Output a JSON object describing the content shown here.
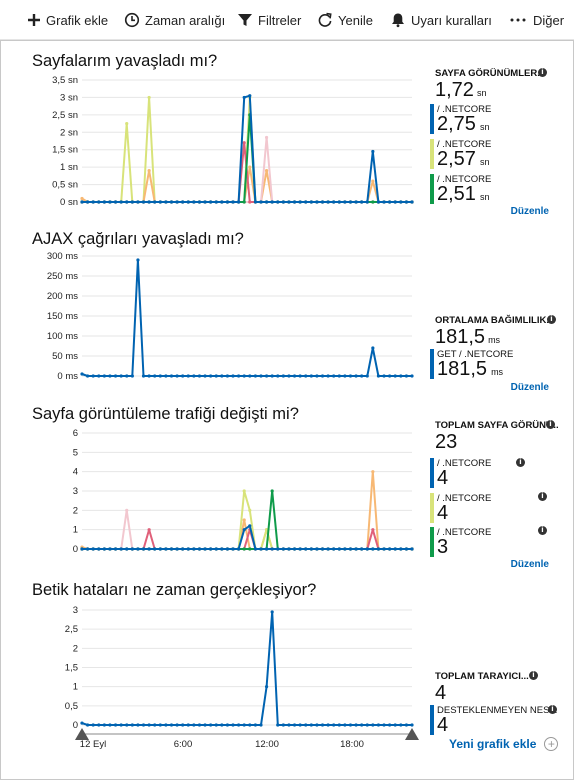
{
  "toolbar": {
    "add_chart": "Grafik ekle",
    "time_range": "Zaman aralığı",
    "filters": "Filtreler",
    "refresh": "Yenile",
    "alert_rules": "Uyarı kuralları",
    "more": "Diğer"
  },
  "colors": {
    "blue": "#0063b1",
    "lime": "#d8e37a",
    "green": "#0f9b4a",
    "pink": "#f2c7cf",
    "orange": "#f7b874",
    "red": "#e0607a",
    "purple": "#9b8fd0",
    "link": "#0063b1"
  },
  "x_axis": {
    "labels": [
      "12 Eyl",
      "6:00",
      "12:00",
      "18:00"
    ]
  },
  "sections": [
    {
      "title": "Sayfalarım yavaşladı mı?",
      "edit_label": "Düzenle",
      "summary": {
        "label": "SAYFA GÖRÜNÜMLER...",
        "value": "1,72",
        "unit": "sn"
      },
      "breakdown": [
        {
          "label": "/ .NETCORE",
          "value": "2,75",
          "unit": "sn",
          "color": "#0063b1"
        },
        {
          "label": "/ .NETCORE",
          "value": "2,57",
          "unit": "sn",
          "color": "#d8e37a"
        },
        {
          "label": "/ .NETCORE",
          "value": "2,51",
          "unit": "sn",
          "color": "#0f9b4a"
        }
      ]
    },
    {
      "title": "AJAX çağrıları yavaşladı mı?",
      "edit_label": "Düzenle",
      "summary": {
        "label": "ORTALAMA BAĞIMLILIK...",
        "value": "181,5",
        "unit": "ms"
      },
      "breakdown": [
        {
          "label": "GET / .NETCORE",
          "value": "181,5",
          "unit": "ms",
          "color": "#0063b1"
        }
      ]
    },
    {
      "title": "Sayfa görüntüleme trafiği değişti mi?",
      "edit_label": "Düzenle",
      "summary": {
        "label": "TOPLAM SAYFA GÖRÜNT...",
        "value": "23",
        "unit": ""
      },
      "breakdown": [
        {
          "label": "/ .NETCORE",
          "value": "4",
          "unit": "",
          "color": "#0063b1"
        },
        {
          "label": "/ .NETCORE",
          "value": "4",
          "unit": "",
          "color": "#d8e37a"
        },
        {
          "label": "/ .NETCORE",
          "value": "3",
          "unit": "",
          "color": "#0f9b4a"
        }
      ]
    },
    {
      "title": "Betik hataları ne zaman gerçekleşiyor?",
      "summary": {
        "label": "TOPLAM TARAYICI...",
        "value": "4",
        "unit": ""
      },
      "breakdown": [
        {
          "label": "DESTEKLENMEYEN NES...",
          "value": "4",
          "unit": "",
          "color": "#0063b1"
        }
      ]
    }
  ],
  "new_chart_label": "Yeni grafik ekle",
  "chart_data": [
    {
      "type": "line",
      "n_points": 60,
      "x_tick_labels": [
        "12 Eyl",
        "6:00",
        "12:00",
        "18:00"
      ],
      "y_tick_labels": [
        "0 sn",
        "0,5 sn",
        "1 sn",
        "1,5 sn",
        "2 sn",
        "2,5 sn",
        "3 sn",
        "3,5 sn"
      ],
      "ylim": [
        0,
        3.5
      ],
      "grid": true,
      "series": [
        {
          "color": "#d8e37a",
          "baseline": 0,
          "peaks": [
            [
              8,
              2.25
            ],
            [
              12,
              3.0
            ],
            [
              30,
              3.0
            ]
          ]
        },
        {
          "color": "#f7b874",
          "baseline": 0,
          "peaks": [
            [
              0,
              0.1
            ],
            [
              12,
              0.9
            ],
            [
              30,
              1.0
            ],
            [
              33,
              0.9
            ],
            [
              52,
              0.6
            ]
          ]
        },
        {
          "color": "#f2c7cf",
          "baseline": 0,
          "peaks": [
            [
              33,
              1.85
            ]
          ]
        },
        {
          "color": "#e0607a",
          "baseline": 0,
          "peaks": [
            [
              29,
              1.7
            ]
          ]
        },
        {
          "color": "#0f9b4a",
          "baseline": 0,
          "peaks": [
            [
              30,
              2.5
            ]
          ]
        },
        {
          "color": "#0063b1",
          "baseline": 0,
          "peaks": [
            [
              29,
              3.0
            ],
            [
              30,
              3.05
            ],
            [
              52,
              1.45
            ]
          ]
        }
      ]
    },
    {
      "type": "line",
      "n_points": 60,
      "x_tick_labels": [
        "12 Eyl",
        "6:00",
        "12:00",
        "18:00"
      ],
      "y_tick_labels": [
        "0 ms",
        "50 ms",
        "100 ms",
        "150 ms",
        "200 ms",
        "250 ms",
        "300 ms"
      ],
      "ylim": [
        0,
        300
      ],
      "grid": true,
      "series": [
        {
          "color": "#0063b1",
          "baseline": 0,
          "peaks": [
            [
              0,
              5
            ],
            [
              10,
              290
            ],
            [
              52,
              70
            ]
          ]
        }
      ]
    },
    {
      "type": "line",
      "n_points": 60,
      "x_tick_labels": [
        "12 Eyl",
        "6:00",
        "12:00",
        "18:00"
      ],
      "y_tick_labels": [
        "0",
        "1",
        "2",
        "3",
        "4",
        "5",
        "6"
      ],
      "ylim": [
        0,
        6
      ],
      "grid": true,
      "series": [
        {
          "color": "#f2c7cf",
          "baseline": 0,
          "peaks": [
            [
              8,
              2
            ]
          ]
        },
        {
          "color": "#f7b874",
          "baseline": 0,
          "peaks": [
            [
              0,
              0.1
            ],
            [
              29,
              1.5
            ],
            [
              33,
              1
            ],
            [
              52,
              4
            ]
          ]
        },
        {
          "color": "#d8e37a",
          "baseline": 0,
          "peaks": [
            [
              29,
              3
            ],
            [
              30,
              2
            ],
            [
              33,
              1
            ]
          ]
        },
        {
          "color": "#e0607a",
          "baseline": 0,
          "peaks": [
            [
              12,
              1
            ],
            [
              30,
              1
            ],
            [
              52,
              1
            ]
          ]
        },
        {
          "color": "#0f9b4a",
          "baseline": 0,
          "peaks": [
            [
              34,
              3
            ]
          ]
        },
        {
          "color": "#0063b1",
          "baseline": 0,
          "peaks": [
            [
              29,
              1
            ],
            [
              30,
              1.2
            ]
          ]
        }
      ]
    },
    {
      "type": "line",
      "n_points": 60,
      "x_tick_labels": [
        "12 Eyl",
        "6:00",
        "12:00",
        "18:00"
      ],
      "y_tick_labels": [
        "0",
        "0,5",
        "1",
        "1,5",
        "2",
        "2,5",
        "3"
      ],
      "ylim": [
        0,
        3
      ],
      "grid": true,
      "series": [
        {
          "color": "#0063b1",
          "baseline": 0,
          "peaks": [
            [
              0,
              0.05
            ],
            [
              33,
              1
            ],
            [
              34,
              2.95
            ]
          ]
        }
      ]
    }
  ]
}
